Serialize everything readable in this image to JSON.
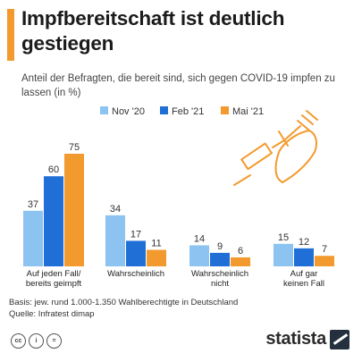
{
  "header": {
    "title": "Impfbereitschaft ist deutlich gestiegen",
    "subtitle": "Anteil der Befragten, die bereit sind, sich gegen COVID-19 impfen zu lassen (in %)",
    "accent_color": "#f39a2e"
  },
  "chart_data": {
    "type": "bar",
    "title": "Impfbereitschaft ist deutlich gestiegen",
    "subtitle": "Anteil der Befragten, die bereit sind, sich gegen COVID-19 impfen zu lassen (in %)",
    "categories": [
      "Auf jeden Fall/\nbereits geimpft",
      "Wahrscheinlich",
      "Wahrscheinlich\nnicht",
      "Auf gar\nkeinen Fall"
    ],
    "series": [
      {
        "name": "Nov '20",
        "color": "#8cc3f0",
        "values": [
          37,
          34,
          14,
          15
        ]
      },
      {
        "name": "Feb '21",
        "color": "#1f6fd6",
        "values": [
          60,
          17,
          9,
          12
        ]
      },
      {
        "name": "Mai '21",
        "color": "#f39a2e",
        "values": [
          75,
          11,
          6,
          7
        ]
      }
    ],
    "ylim": [
      0,
      75
    ],
    "grid": false,
    "legend_position": "top-center",
    "xlabel": "",
    "ylabel": ""
  },
  "footer": {
    "basis": "Basis: jew. rund 1.000-1.350 Wahlberechtigte in Deutschland",
    "source": "Quelle: Infratest dimap"
  },
  "license_icons": [
    "cc",
    "by",
    "nd"
  ],
  "brand": {
    "name": "statista"
  },
  "illustration": {
    "icon": "syringe-icon",
    "color": "#f39a2e"
  }
}
